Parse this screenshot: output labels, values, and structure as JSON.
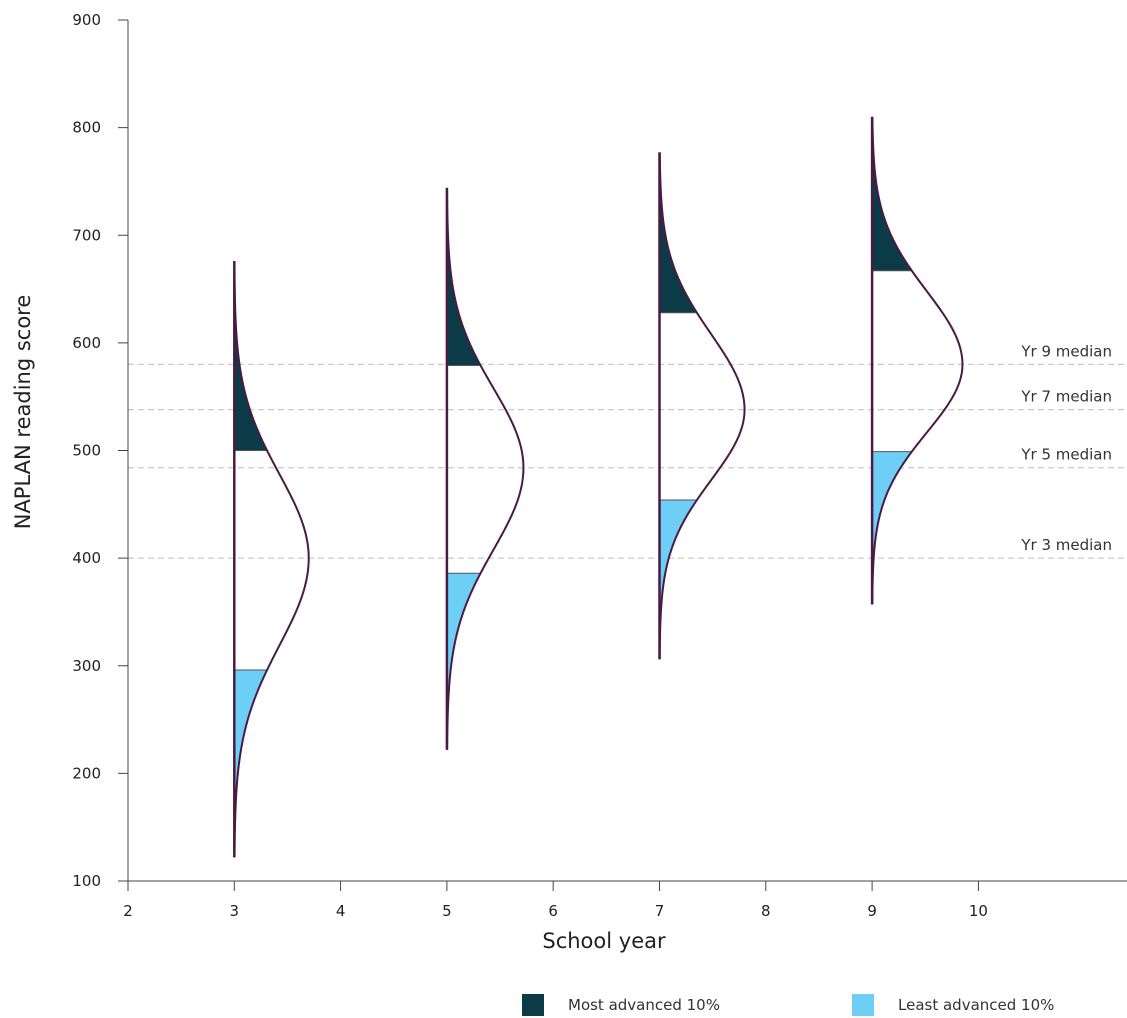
{
  "chart_data": {
    "type": "area",
    "title": "",
    "xlabel": "School year",
    "ylabel": "NAPLAN reading score",
    "xlim": [
      2,
      12
    ],
    "ylim": [
      100,
      900
    ],
    "x_ticks": [
      2,
      3,
      4,
      5,
      6,
      7,
      8,
      9,
      10
    ],
    "y_ticks": [
      100,
      200,
      300,
      400,
      500,
      600,
      700,
      800,
      900
    ],
    "grid": false,
    "legend_position": "bottom",
    "colors": {
      "outline": "#4a1a45",
      "top": "#0b3b47",
      "bottom": "#6dcff6",
      "median_line": "#c8c8c8",
      "axis": "#444444"
    },
    "legend": [
      {
        "key": "top",
        "label": "Most advanced 10%"
      },
      {
        "key": "bottom",
        "label": "Least advanced 10%"
      }
    ],
    "medians": [
      {
        "label": "Yr 9 median",
        "value": 580
      },
      {
        "label": "Yr 7 median",
        "value": 538
      },
      {
        "label": "Yr 5 median",
        "value": 484
      },
      {
        "label": "Yr 3 median",
        "value": 400
      }
    ],
    "series": [
      {
        "year": 3,
        "median": 400,
        "p10": 296,
        "p90": 500,
        "min": 122,
        "max": 676,
        "peak_width": 0.7
      },
      {
        "year": 5,
        "median": 484,
        "p10": 386,
        "p90": 579,
        "min": 222,
        "max": 744,
        "peak_width": 0.72
      },
      {
        "year": 7,
        "median": 538,
        "p10": 454,
        "p90": 628,
        "min": 306,
        "max": 777,
        "peak_width": 0.8
      },
      {
        "year": 9,
        "median": 580,
        "p10": 499,
        "p90": 667,
        "min": 357,
        "max": 810,
        "peak_width": 0.85
      }
    ]
  }
}
